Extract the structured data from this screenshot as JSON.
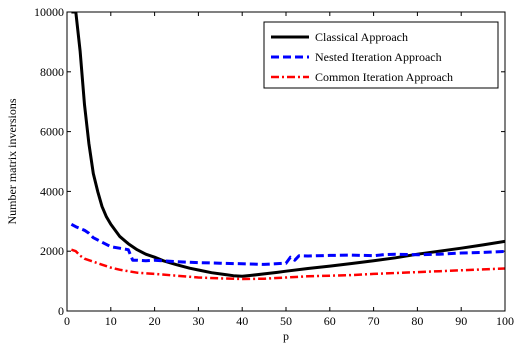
{
  "chart_data": {
    "type": "line",
    "xlabel": "p",
    "ylabel": "Number matrix inversions",
    "xlim": [
      0,
      100
    ],
    "ylim": [
      0,
      10000
    ],
    "xticks": [
      "0",
      "10",
      "20",
      "30",
      "40",
      "50",
      "60",
      "70",
      "80",
      "90",
      "100"
    ],
    "yticks": [
      "0",
      "2000",
      "4000",
      "6000",
      "8000",
      "10000"
    ],
    "legend_position": "top-right",
    "series": [
      {
        "name": "Classical Approach",
        "color": "#000000",
        "line_style": "solid",
        "x": [
          1,
          2,
          3,
          4,
          5,
          6,
          7,
          8,
          9,
          10,
          12,
          14,
          16,
          18,
          20,
          22,
          25,
          28,
          30,
          33,
          36,
          38,
          40,
          42,
          45,
          48,
          50,
          55,
          60,
          65,
          70,
          75,
          80,
          85,
          90,
          95,
          100
        ],
        "y": [
          10000,
          10000,
          8700,
          6900,
          5600,
          4600,
          4000,
          3500,
          3150,
          2900,
          2500,
          2250,
          2050,
          1900,
          1800,
          1680,
          1550,
          1430,
          1370,
          1280,
          1220,
          1180,
          1160,
          1190,
          1240,
          1290,
          1330,
          1420,
          1500,
          1590,
          1680,
          1780,
          1900,
          2000,
          2100,
          2210,
          2330
        ]
      },
      {
        "name": "Nested Iteration Approach",
        "color": "#0000ff",
        "line_style": "dashed",
        "x": [
          1,
          2,
          3,
          4,
          5,
          6,
          8,
          10,
          12,
          14,
          15,
          16,
          18,
          20,
          25,
          30,
          35,
          40,
          45,
          50,
          51,
          52,
          53,
          55,
          60,
          65,
          70,
          72,
          75,
          80,
          85,
          90,
          95,
          100
        ],
        "y": [
          2900,
          2820,
          2760,
          2700,
          2600,
          2450,
          2300,
          2150,
          2100,
          2050,
          1700,
          1700,
          1680,
          1700,
          1650,
          1620,
          1600,
          1580,
          1560,
          1600,
          1800,
          1700,
          1850,
          1840,
          1860,
          1870,
          1850,
          1880,
          1900,
          1880,
          1900,
          1940,
          1960,
          1990
        ]
      },
      {
        "name": "Common Iteration Approach",
        "color": "#ff0000",
        "line_style": "dashdot",
        "x": [
          1,
          2,
          3,
          4,
          5,
          6,
          8,
          10,
          12,
          14,
          16,
          18,
          20,
          25,
          30,
          35,
          40,
          45,
          50,
          55,
          60,
          65,
          70,
          75,
          80,
          85,
          90,
          95,
          100
        ],
        "y": [
          2050,
          2000,
          1850,
          1750,
          1700,
          1650,
          1550,
          1450,
          1380,
          1330,
          1280,
          1260,
          1240,
          1180,
          1120,
          1090,
          1070,
          1080,
          1120,
          1160,
          1180,
          1200,
          1240,
          1270,
          1300,
          1330,
          1360,
          1390,
          1420
        ]
      }
    ]
  }
}
